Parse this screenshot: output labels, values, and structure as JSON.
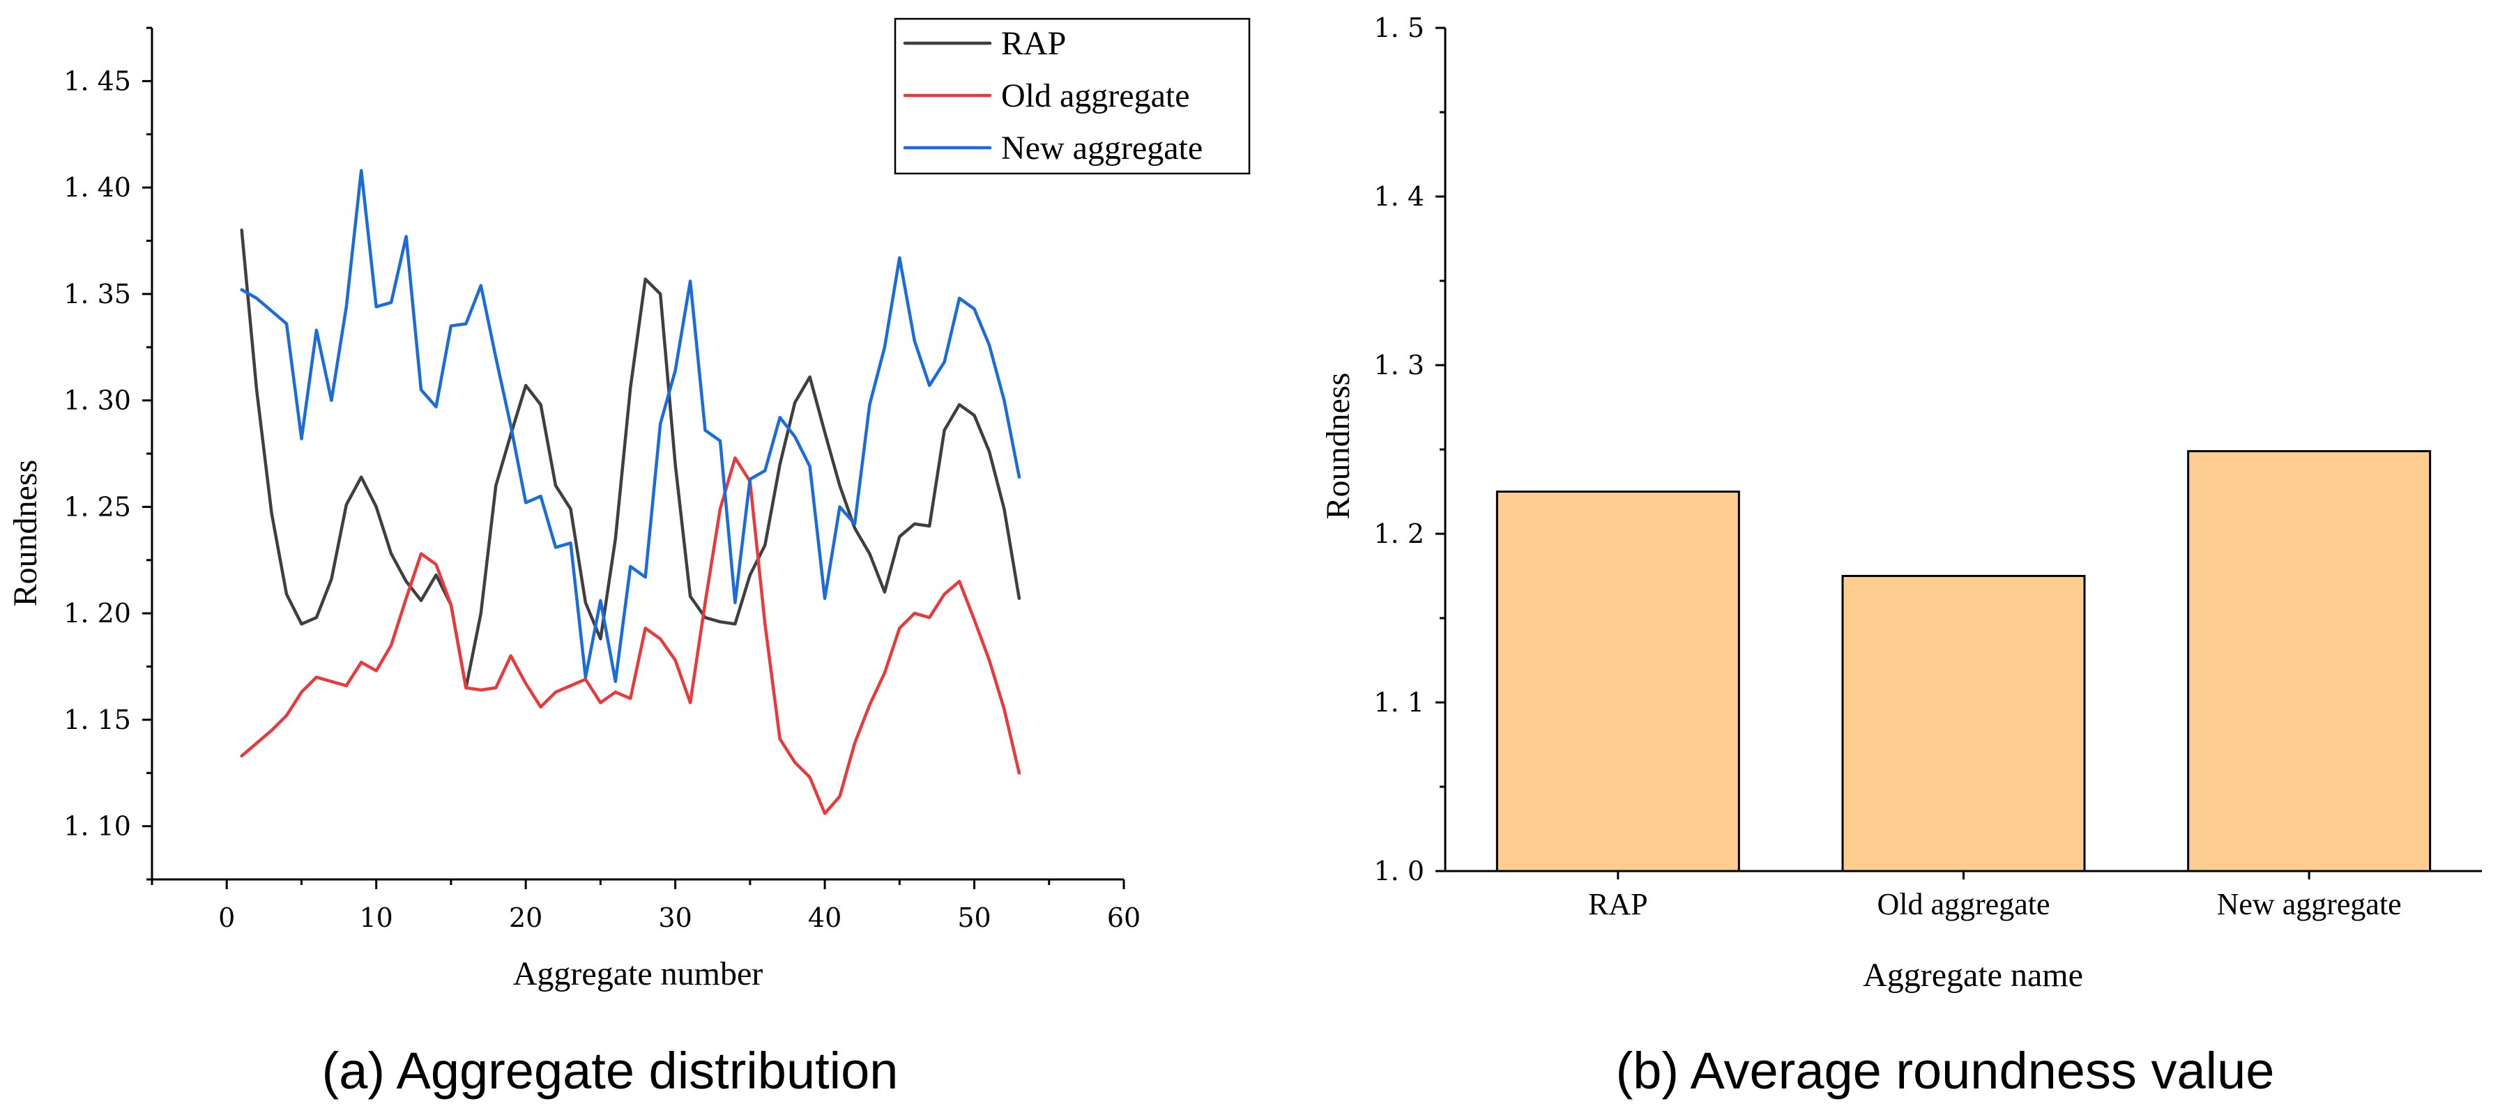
{
  "chart_data": [
    {
      "type": "line",
      "caption": "(a) Aggregate distribution",
      "xlabel": "Aggregate number",
      "ylabel": "Roundness",
      "xlim": [
        -5,
        60
      ],
      "ylim": [
        1.075,
        1.475
      ],
      "xticks": [
        0,
        10,
        20,
        30,
        40,
        50,
        60
      ],
      "yticks": [
        1.1,
        1.15,
        1.2,
        1.25,
        1.3,
        1.35,
        1.4,
        1.45
      ],
      "xtick_labels": [
        "0",
        "10",
        "20",
        "30",
        "40",
        "50",
        "60"
      ],
      "ytick_labels": [
        "1. 10",
        "1. 15",
        "1. 20",
        "1. 25",
        "1. 30",
        "1. 35",
        "1. 40",
        "1. 45"
      ],
      "legend_position": "top-right",
      "x": [
        1,
        2,
        3,
        4,
        5,
        6,
        7,
        8,
        9,
        10,
        11,
        12,
        13,
        14,
        15,
        16,
        17,
        18,
        19,
        20,
        21,
        22,
        23,
        24,
        25,
        26,
        27,
        28,
        29,
        30,
        31,
        32,
        33,
        34,
        35,
        36,
        37,
        38,
        39,
        40,
        41,
        42,
        43,
        44,
        45,
        46,
        47,
        48,
        49,
        50,
        51,
        52,
        53
      ],
      "series": [
        {
          "name": "RAP",
          "color": "#3f3f3f",
          "values": [
            1.38,
            1.305,
            1.247,
            1.209,
            1.195,
            1.198,
            1.216,
            1.251,
            1.264,
            1.25,
            1.228,
            1.215,
            1.206,
            1.218,
            1.204,
            1.165,
            1.2,
            1.26,
            1.284,
            1.307,
            1.298,
            1.26,
            1.249,
            1.205,
            1.188,
            1.235,
            1.306,
            1.357,
            1.35,
            1.27,
            1.208,
            1.198,
            1.196,
            1.195,
            1.218,
            1.232,
            1.27,
            1.299,
            1.311,
            1.285,
            1.26,
            1.24,
            1.228,
            1.21,
            1.236,
            1.242,
            1.241,
            1.286,
            1.298,
            1.293,
            1.276,
            1.249,
            1.207
          ]
        },
        {
          "name": "Old aggregate",
          "color": "#e83a3a",
          "values": [
            1.133,
            1.139,
            1.145,
            1.152,
            1.163,
            1.17,
            1.168,
            1.166,
            1.177,
            1.173,
            1.185,
            1.207,
            1.228,
            1.223,
            1.204,
            1.165,
            1.164,
            1.165,
            1.18,
            1.167,
            1.156,
            1.163,
            1.166,
            1.169,
            1.158,
            1.163,
            1.16,
            1.193,
            1.188,
            1.178,
            1.158,
            1.205,
            1.249,
            1.273,
            1.262,
            1.195,
            1.141,
            1.13,
            1.123,
            1.106,
            1.114,
            1.139,
            1.157,
            1.172,
            1.193,
            1.2,
            1.198,
            1.209,
            1.215,
            1.197,
            1.178,
            1.155,
            1.125
          ]
        },
        {
          "name": "New aggregate",
          "color": "#1a6dd8",
          "values": [
            1.352,
            1.348,
            1.342,
            1.336,
            1.282,
            1.333,
            1.3,
            1.344,
            1.408,
            1.344,
            1.346,
            1.377,
            1.305,
            1.297,
            1.335,
            1.336,
            1.354,
            1.32,
            1.288,
            1.252,
            1.255,
            1.231,
            1.233,
            1.17,
            1.206,
            1.168,
            1.222,
            1.217,
            1.289,
            1.314,
            1.356,
            1.286,
            1.281,
            1.205,
            1.263,
            1.267,
            1.292,
            1.283,
            1.269,
            1.207,
            1.25,
            1.242,
            1.298,
            1.325,
            1.367,
            1.328,
            1.307,
            1.318,
            1.348,
            1.343,
            1.326,
            1.3,
            1.264
          ]
        }
      ]
    },
    {
      "type": "bar",
      "caption": "(b) Average roundness value",
      "xlabel": "Aggregate name",
      "ylabel": "Roundness",
      "ylim": [
        1.0,
        1.5
      ],
      "yticks": [
        1.0,
        1.1,
        1.2,
        1.3,
        1.4,
        1.5
      ],
      "ytick_labels": [
        "1. 0",
        "1. 1",
        "1. 2",
        "1. 3",
        "1. 4",
        "1. 5"
      ],
      "categories": [
        "RAP",
        "Old aggregate",
        "New aggregate"
      ],
      "values": [
        1.225,
        1.175,
        1.249
      ],
      "bar_color": "#fdce90"
    }
  ]
}
